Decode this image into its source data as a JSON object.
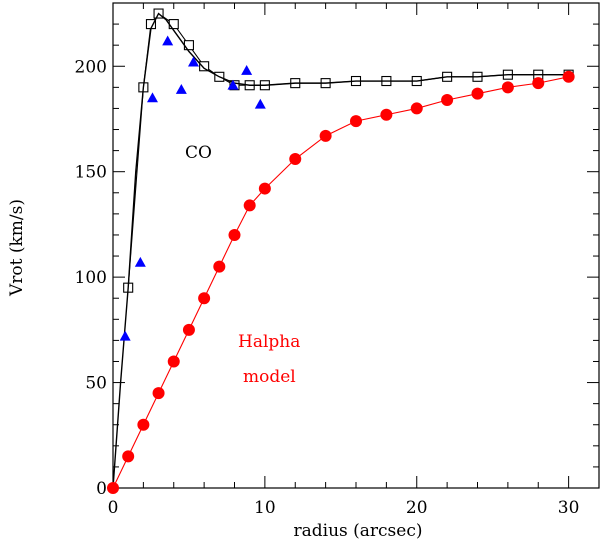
{
  "chart_data": {
    "type": "scatter",
    "title": "",
    "xlabel": "radius (arcsec)",
    "ylabel": "Vrot (km/s)",
    "xlim": [
      0,
      32
    ],
    "ylim": [
      0,
      230
    ],
    "x_major_ticks": [
      0,
      10,
      20,
      30
    ],
    "y_major_ticks": [
      0,
      50,
      100,
      150,
      200
    ],
    "x_minor_step": 2,
    "y_minor_step": 10,
    "grid": false,
    "annotations": [
      {
        "text": "CO",
        "color": "#000000"
      },
      {
        "text": "Halpha",
        "color": "#ff0000"
      },
      {
        "text": "model",
        "color": "#ff0000"
      }
    ],
    "series": [
      {
        "name": "CO model (open squares)",
        "marker": "square-open",
        "line": true,
        "color": "#000000",
        "x": [
          1.0,
          2.0,
          2.5,
          3.0,
          4.0,
          5.0,
          6.0,
          7.0,
          8.0,
          9.0,
          10.0,
          12.0,
          14.0,
          16.0,
          18.0,
          20.0,
          22.0,
          24.0,
          26.0,
          28.0,
          30.0
        ],
        "y": [
          95,
          190,
          220,
          225,
          220,
          210,
          200,
          195,
          191,
          191,
          191,
          192,
          192,
          193,
          193,
          193,
          195,
          195,
          196,
          196,
          196
        ]
      },
      {
        "name": "CO curve (thin line)",
        "marker": "none",
        "line": true,
        "color": "#000000",
        "x": [
          0,
          0.5,
          1.0,
          1.5,
          2.0,
          2.5,
          3.0,
          3.5,
          4.0,
          4.5,
          5.0,
          6.0,
          7.0,
          8.0,
          9.0,
          10.0,
          12.0,
          14.0,
          16.0,
          18.0,
          20.0,
          22.0,
          24.0,
          26.0,
          28.0,
          30.0
        ],
        "y": [
          0,
          50,
          95,
          150,
          190,
          218,
          225,
          222,
          217,
          212,
          207,
          199,
          195,
          192,
          191,
          191,
          192,
          192,
          193,
          193,
          193,
          195,
          195,
          196,
          196,
          196
        ]
      },
      {
        "name": "CO data (filled triangles)",
        "marker": "triangle",
        "line": false,
        "color": "#0000ff",
        "x": [
          0.8,
          1.8,
          2.6,
          3.6,
          4.5,
          5.3,
          7.9,
          8.8,
          9.7
        ],
        "y": [
          72,
          107,
          185,
          212,
          189,
          202,
          191,
          198,
          182
        ]
      },
      {
        "name": "Halpha model (filled circles)",
        "marker": "circle",
        "line": true,
        "color": "#ff0000",
        "x": [
          0,
          1,
          2,
          3,
          4,
          5,
          6,
          7,
          8,
          9,
          10,
          12,
          14,
          16,
          18,
          20,
          22,
          24,
          26,
          28,
          30
        ],
        "y": [
          0,
          15,
          30,
          45,
          60,
          75,
          90,
          105,
          120,
          134,
          142,
          156,
          167,
          174,
          177,
          180,
          184,
          187,
          190,
          192,
          195
        ]
      }
    ]
  }
}
